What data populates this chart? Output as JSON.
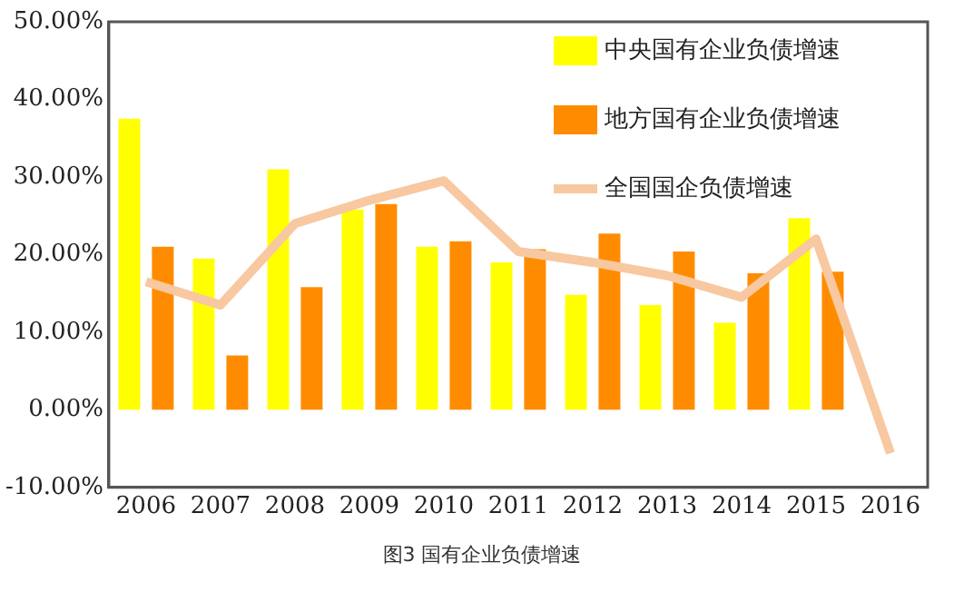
{
  "chart_data": {
    "type": "bar",
    "categories": [
      "2006",
      "2007",
      "2008",
      "2009",
      "2010",
      "2011",
      "2012",
      "2013",
      "2014",
      "2015",
      "2016"
    ],
    "series": [
      {
        "name": "中央国有企业负债增速",
        "color": "#ffff00",
        "values": [
          37.5,
          19.5,
          31,
          25.8,
          21,
          19,
          14.8,
          13.5,
          11.2,
          24.7,
          null
        ]
      },
      {
        "name": "地方国有企业负债增速",
        "color": "#ff8c00",
        "values": [
          21,
          7,
          15.8,
          26.5,
          21.7,
          20.7,
          22.7,
          20.4,
          17.6,
          17.8,
          null
        ]
      },
      {
        "name": "全国国企负债增速",
        "type": "line",
        "color": "#f8c8a0",
        "values": [
          16.5,
          13.5,
          24,
          27,
          29.5,
          20.4,
          19,
          17.3,
          14.5,
          22,
          -5.6
        ]
      }
    ],
    "ylim": [
      -10,
      50
    ],
    "yticks": [
      {
        "value": -10,
        "label": "-10.00%"
      },
      {
        "value": 0,
        "label": "0.00%"
      },
      {
        "value": 10,
        "label": "10.00%"
      },
      {
        "value": 20,
        "label": "20.00%"
      },
      {
        "value": 30,
        "label": "30.00%"
      },
      {
        "value": 40,
        "label": "40.00%"
      },
      {
        "value": 50,
        "label": "50.00%"
      }
    ],
    "grid": false,
    "legend": "top right",
    "marker": "none",
    "annotations": [
      "图3 国有企业负债增速"
    ]
  }
}
